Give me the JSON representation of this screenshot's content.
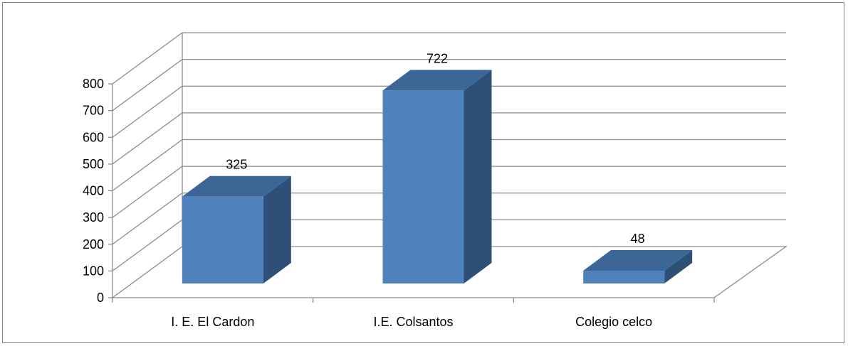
{
  "chart_data": {
    "type": "bar",
    "style": "3d-column",
    "categories": [
      "I. E. El Cardon",
      "I.E. Colsantos",
      "Colegio celco"
    ],
    "values": [
      325,
      722,
      48
    ],
    "ylim": [
      0,
      800
    ],
    "yticks": [
      0,
      100,
      200,
      300,
      400,
      500,
      600,
      700,
      800
    ],
    "grid": true,
    "legend": "none",
    "data_labels": true,
    "colors": {
      "front": "#4f81bd",
      "top": "#3b6696",
      "side": "#2e5077",
      "grid": "#8c8c8c",
      "axis": "#8c8c8c"
    }
  }
}
